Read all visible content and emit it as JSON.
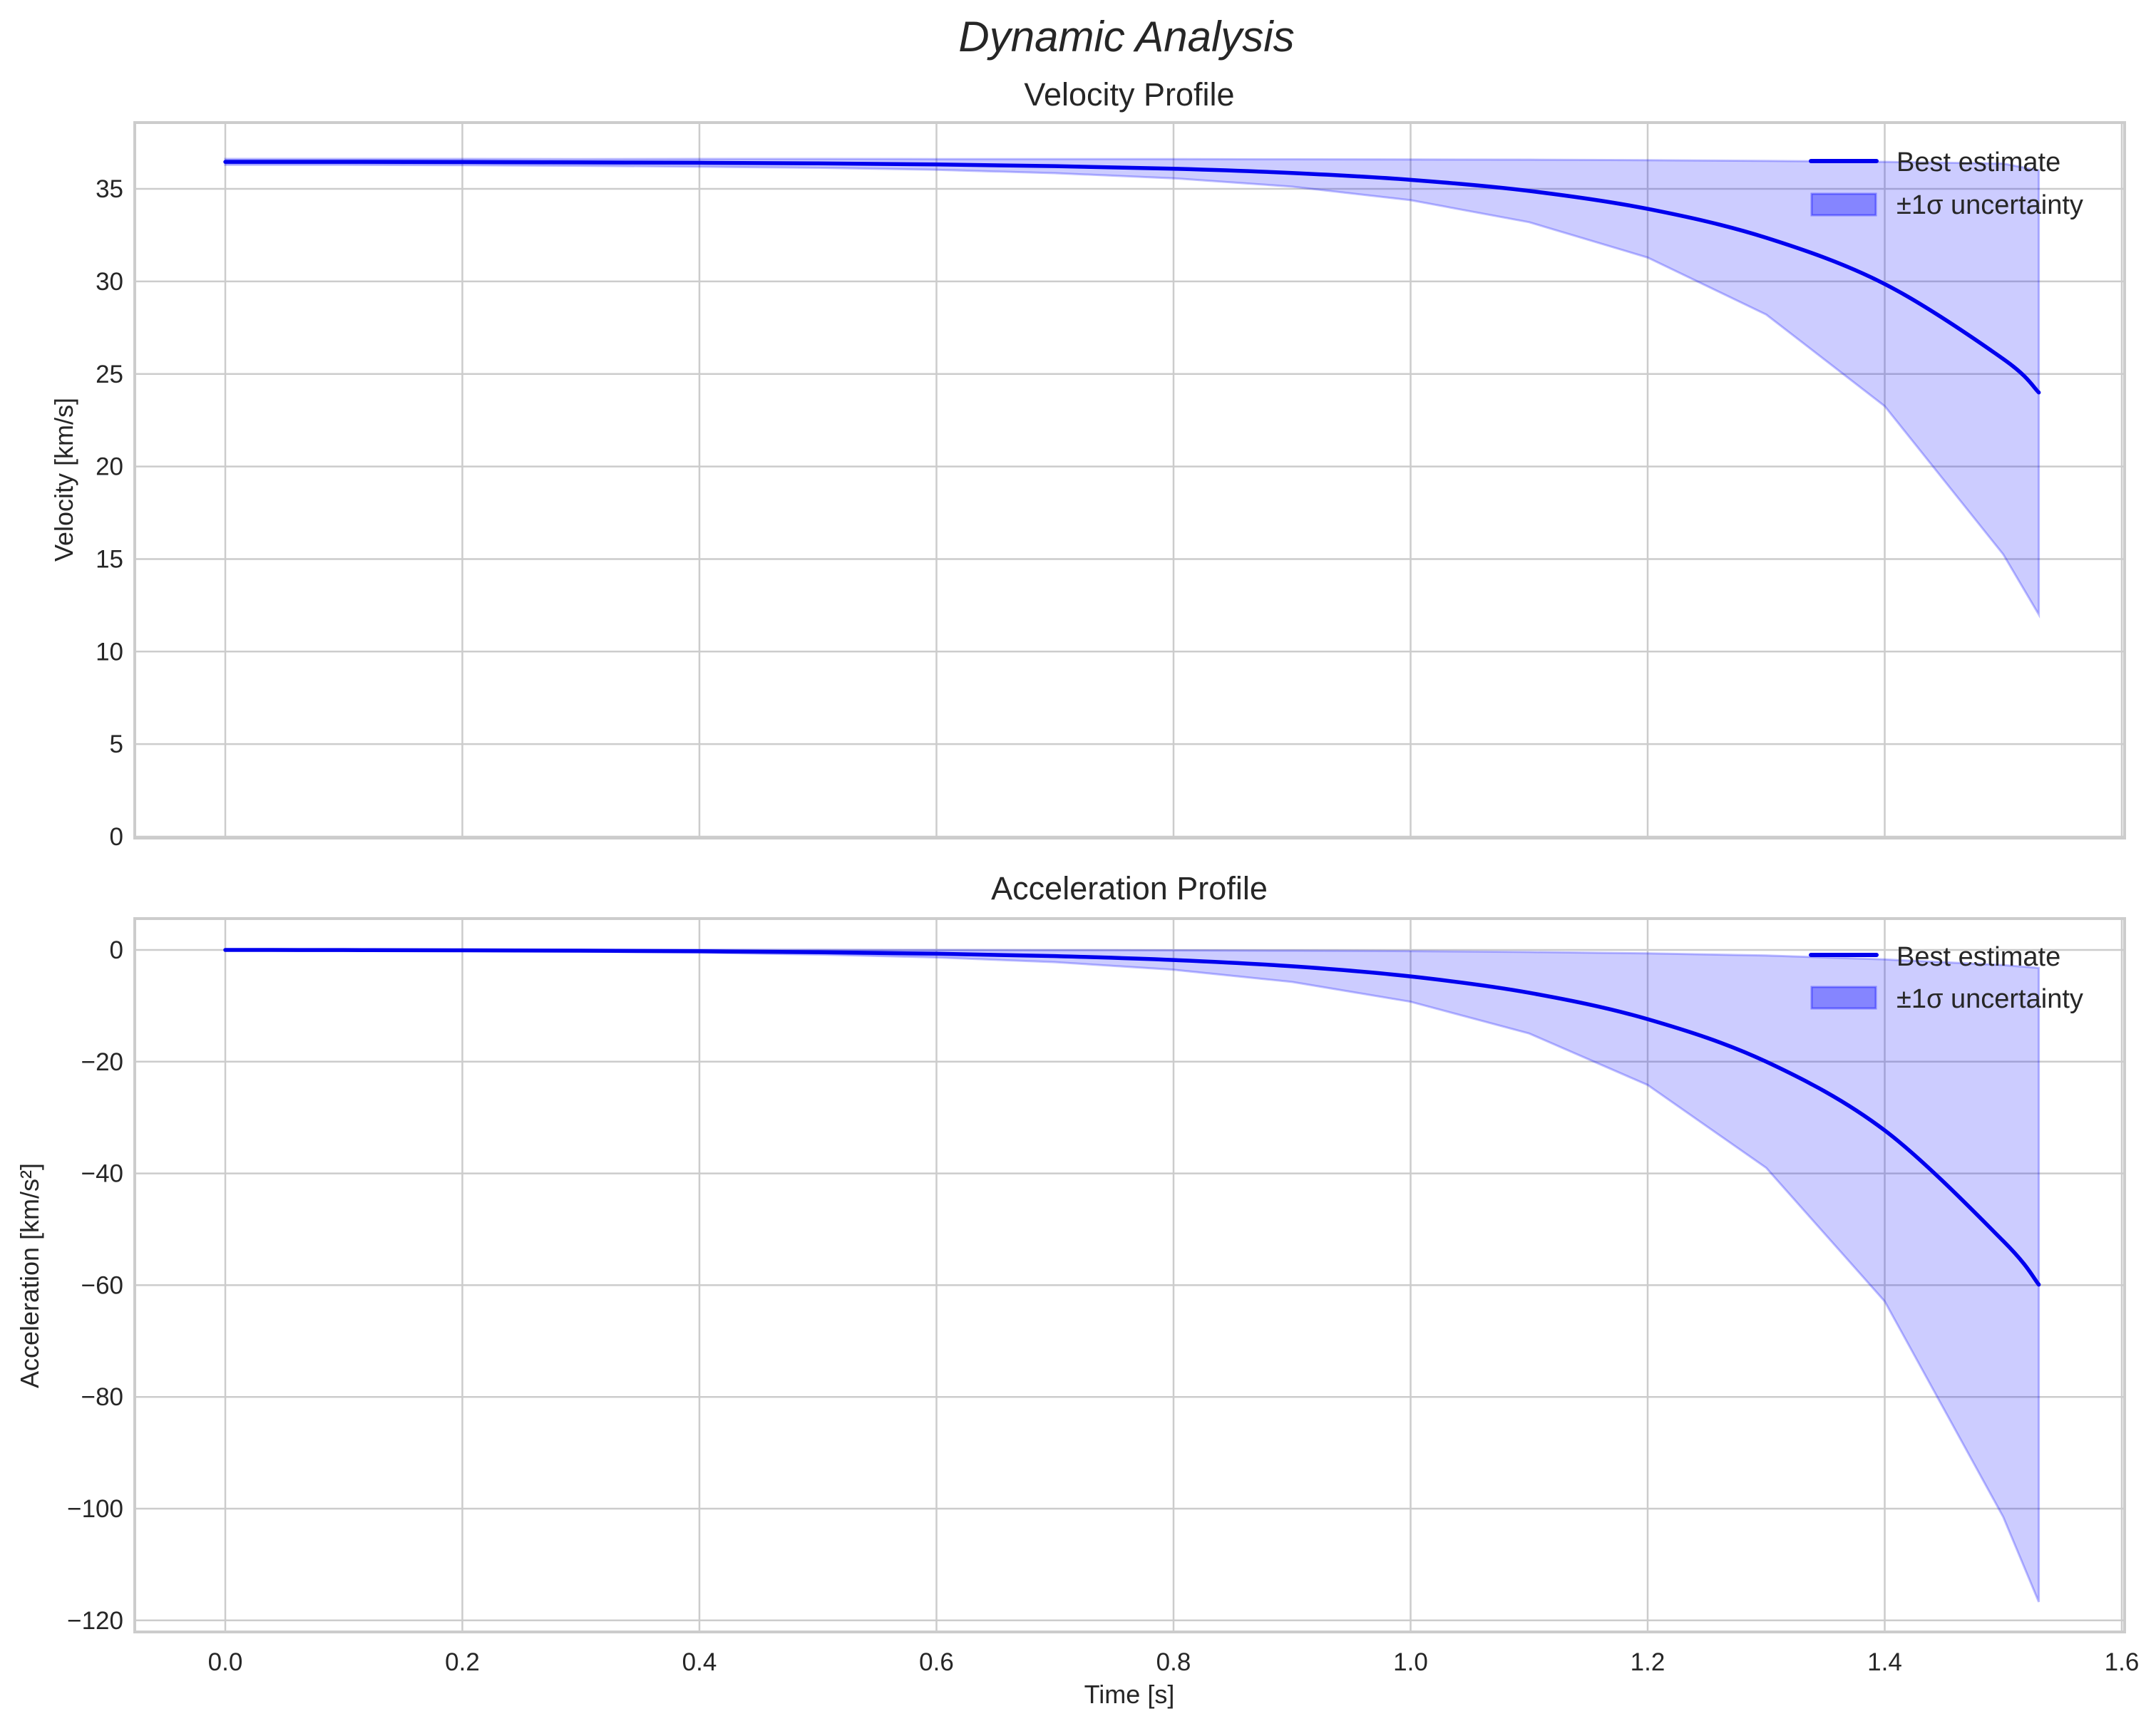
{
  "figure": {
    "suptitle": "Dynamic Analysis",
    "colors": {
      "line": "#0000ee",
      "band_fill": "#0000ff",
      "band_alpha": 0.2,
      "grid": "#cccccc",
      "text": "#262626",
      "background": "#ffffff"
    }
  },
  "legend": {
    "line_label": "Best estimate",
    "band_label": "±1σ uncertainty"
  },
  "chart_data": [
    {
      "type": "line",
      "title": "Velocity Profile",
      "xlabel": "",
      "ylabel": "Velocity [km/s]",
      "xlim": [
        -0.08,
        1.6
      ],
      "ylim": [
        0,
        38.4
      ],
      "xticks": [
        0.0,
        0.2,
        0.4,
        0.6,
        0.8,
        1.0,
        1.2,
        1.4,
        1.6
      ],
      "xtick_labels_visible": false,
      "yticks": [
        0,
        5,
        10,
        15,
        20,
        25,
        30,
        35
      ],
      "grid": true,
      "legend_position": "upper right",
      "x": [
        0.0,
        0.1,
        0.2,
        0.3,
        0.4,
        0.5,
        0.6,
        0.7,
        0.8,
        0.9,
        1.0,
        1.1,
        1.2,
        1.3,
        1.4,
        1.5,
        1.53
      ],
      "series": [
        {
          "name": "Best estimate",
          "kind": "line",
          "values": [
            36.46,
            36.46,
            36.45,
            36.43,
            36.41,
            36.38,
            36.32,
            36.23,
            36.09,
            35.86,
            35.49,
            34.89,
            33.92,
            32.36,
            29.86,
            25.81,
            24.0
          ]
        },
        {
          "name": "±1σ uncertainty (upper)",
          "kind": "band_upper",
          "values": [
            36.62,
            36.62,
            36.62,
            36.61,
            36.62,
            36.62,
            36.61,
            36.61,
            36.61,
            36.6,
            36.59,
            36.58,
            36.55,
            36.51,
            36.46,
            36.37,
            36.0
          ]
        },
        {
          "name": "±1σ uncertainty (lower)",
          "kind": "band_lower",
          "values": [
            36.3,
            36.3,
            36.28,
            36.25,
            36.2,
            36.14,
            36.03,
            35.85,
            35.57,
            35.12,
            34.39,
            33.2,
            31.29,
            28.21,
            23.26,
            15.25,
            12.0
          ]
        }
      ]
    },
    {
      "type": "line",
      "title": "Acceleration Profile",
      "xlabel": "Time [s]",
      "ylabel": "Acceleration [km/s²]",
      "xlim": [
        -0.08,
        1.6
      ],
      "ylim": [
        -122,
        6
      ],
      "xticks": [
        0.0,
        0.2,
        0.4,
        0.6,
        0.8,
        1.0,
        1.2,
        1.4,
        1.6
      ],
      "xtick_labels": [
        "0.0",
        "0.2",
        "0.4",
        "0.6",
        "0.8",
        "1.0",
        "1.2",
        "1.4",
        "1.6"
      ],
      "yticks": [
        0,
        -20,
        -40,
        -60,
        -80,
        -100,
        -120
      ],
      "ytick_labels": [
        "0",
        "−20",
        "−40",
        "−60",
        "−80",
        "−100",
        "−120"
      ],
      "grid": true,
      "legend_position": "upper right",
      "x": [
        0.0,
        0.1,
        0.2,
        0.3,
        0.4,
        0.5,
        0.6,
        0.7,
        0.8,
        0.9,
        1.0,
        1.1,
        1.2,
        1.3,
        1.4,
        1.5,
        1.53
      ],
      "series": [
        {
          "name": "Best estimate",
          "kind": "line",
          "values": [
            0.0,
            -0.02,
            -0.06,
            -0.13,
            -0.23,
            -0.4,
            -0.67,
            -1.1,
            -1.8,
            -2.92,
            -4.74,
            -7.66,
            -12.39,
            -20.0,
            -32.3,
            -52.1,
            -59.9
          ]
        },
        {
          "name": "±1σ uncertainty (upper)",
          "kind": "band_upper",
          "values": [
            0.04,
            0.04,
            0.04,
            0.03,
            0.03,
            0.02,
            0.0,
            -0.02,
            -0.06,
            -0.11,
            -0.21,
            -0.37,
            -0.61,
            -1.0,
            -1.7,
            -2.7,
            -3.2
          ]
        },
        {
          "name": "±1σ uncertainty (lower)",
          "kind": "band_lower",
          "values": [
            -0.04,
            -0.08,
            -0.16,
            -0.29,
            -0.49,
            -0.81,
            -1.34,
            -2.18,
            -3.54,
            -5.73,
            -9.27,
            -14.95,
            -24.17,
            -39.0,
            -62.9,
            -101.5,
            -116.7
          ]
        }
      ]
    }
  ]
}
